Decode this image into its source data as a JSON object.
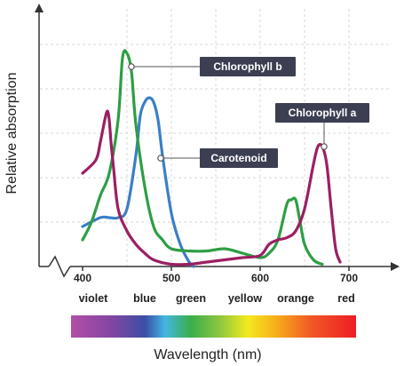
{
  "chart_data": {
    "type": "line",
    "xlabel": "Wavelength (nm)",
    "ylabel": "Relative absorption",
    "xlim": [
      400,
      700
    ],
    "x_ticks": [
      "400",
      "500",
      "600",
      "700"
    ],
    "color_labels": [
      {
        "label": "violet",
        "x": 412
      },
      {
        "label": "blue",
        "x": 470
      },
      {
        "label": "green",
        "x": 522
      },
      {
        "label": "yellow",
        "x": 583
      },
      {
        "label": "orange",
        "x": 640
      },
      {
        "label": "red",
        "x": 697
      }
    ],
    "grid": true,
    "series": [
      {
        "name": "Chlorophyll a",
        "color": "#9b1f63",
        "x": [
          400,
          415,
          420,
          425,
          428,
          430,
          432,
          435,
          440,
          450,
          460,
          470,
          480,
          500,
          520,
          540,
          560,
          580,
          600,
          610,
          620,
          630,
          640,
          650,
          660,
          665,
          670,
          675,
          680,
          685,
          690
        ],
        "y": [
          0.21,
          0.24,
          0.28,
          0.33,
          0.35,
          0.33,
          0.28,
          0.22,
          0.13,
          0.08,
          0.05,
          0.03,
          0.015,
          0.005,
          0.005,
          0.01,
          0.015,
          0.02,
          0.025,
          0.05,
          0.06,
          0.065,
          0.08,
          0.13,
          0.23,
          0.27,
          0.27,
          0.23,
          0.13,
          0.04,
          0.01
        ]
      },
      {
        "name": "Chlorophyll b",
        "color": "#2e9e44",
        "x": [
          400,
          410,
          420,
          430,
          440,
          445,
          450,
          455,
          460,
          470,
          480,
          490,
          500,
          520,
          540,
          560,
          580,
          600,
          610,
          620,
          630,
          635,
          640,
          645,
          650,
          660,
          670
        ],
        "y": [
          0.06,
          0.1,
          0.16,
          0.21,
          0.33,
          0.47,
          0.48,
          0.44,
          0.32,
          0.18,
          0.09,
          0.06,
          0.04,
          0.035,
          0.035,
          0.04,
          0.03,
          0.02,
          0.03,
          0.06,
          0.14,
          0.15,
          0.15,
          0.1,
          0.05,
          0.015,
          0.005
        ]
      },
      {
        "name": "Carotenoid",
        "color": "#3a7fc6",
        "x": [
          400,
          420,
          430,
          440,
          450,
          460,
          465,
          470,
          475,
          480,
          485,
          490,
          500,
          510,
          520,
          525
        ],
        "y": [
          0.09,
          0.11,
          0.11,
          0.11,
          0.13,
          0.25,
          0.34,
          0.37,
          0.38,
          0.37,
          0.33,
          0.25,
          0.12,
          0.05,
          0.01,
          0.0
        ]
      }
    ],
    "callouts": [
      {
        "text": "Chlorophyll b",
        "series": "Chlorophyll b",
        "x": 455
      },
      {
        "text": "Carotenoid",
        "series": "Carotenoid",
        "x": 488
      },
      {
        "text": "Chlorophyll a",
        "series": "Chlorophyll a",
        "x": 668
      }
    ]
  }
}
